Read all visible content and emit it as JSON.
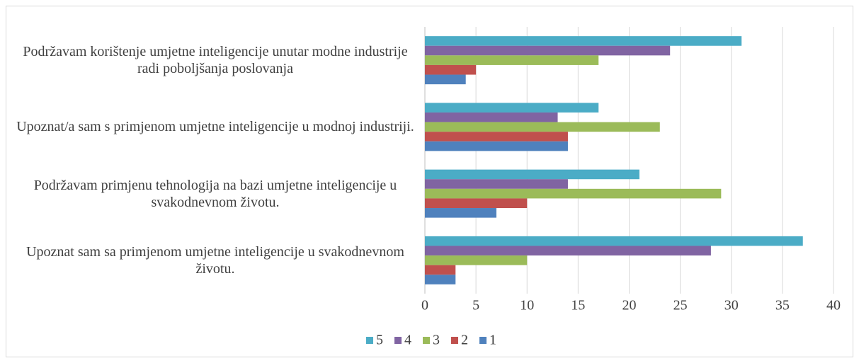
{
  "chart_data": {
    "type": "hbar",
    "categories": [
      "Podržavam korištenje umjetne inteligencije unutar modne industrije radi poboljšanja poslovanja",
      "Upoznat/a sam s primjenom umjetne inteligencije u modnoj industriji.",
      "Podržavam primjenu tehnologija na bazi umjetne inteligencije u svakodnevnom životu.",
      "Upoznat sam sa primjenom umjetne inteligencije u svakodnevnom životu."
    ],
    "series": [
      {
        "name": "5",
        "color": "#4bacc6",
        "values": [
          31,
          17,
          21,
          37
        ]
      },
      {
        "name": "4",
        "color": "#8064a2",
        "values": [
          24,
          13,
          14,
          28
        ]
      },
      {
        "name": "3",
        "color": "#9bbb59",
        "values": [
          17,
          23,
          29,
          10
        ]
      },
      {
        "name": "2",
        "color": "#c0504d",
        "values": [
          5,
          14,
          10,
          3
        ]
      },
      {
        "name": "1",
        "color": "#4f81bd",
        "values": [
          4,
          14,
          7,
          3
        ]
      }
    ],
    "xlim": [
      0,
      40
    ],
    "xticks": [
      0,
      5,
      10,
      15,
      20,
      25,
      30,
      35,
      40
    ],
    "grid": true,
    "legend": "bottom"
  }
}
